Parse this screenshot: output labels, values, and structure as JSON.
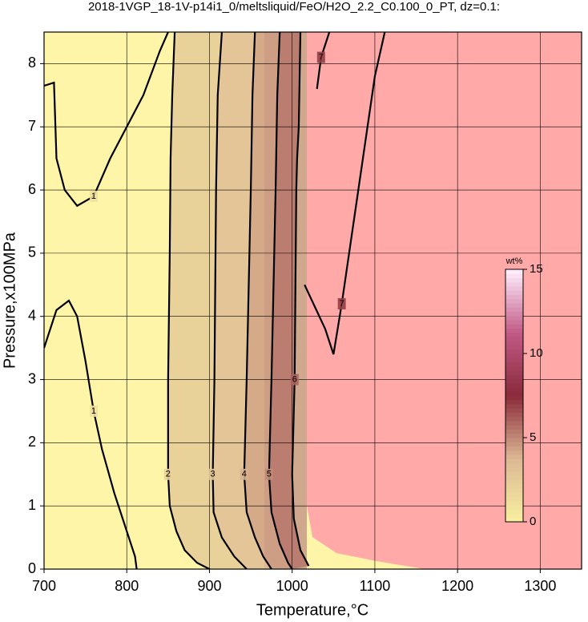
{
  "chart_data": {
    "type": "contour",
    "title": "2018-1VGP_18-1V-p14i1_0/meltsliquid/FeO/H2O_2.2_C0.100_0_PT, dz=0.1:",
    "x_label": "Temperature,°C",
    "y_label": "Pressure,x100MPa",
    "xlim": [
      700,
      1350
    ],
    "ylim": [
      0,
      8.5
    ],
    "xticks": [
      700,
      800,
      900,
      1000,
      1100,
      1200,
      1300
    ],
    "yticks": [
      0,
      1,
      2,
      3,
      4,
      5,
      6,
      7,
      8
    ],
    "grid": true,
    "contours": [
      {
        "level": 1,
        "pieces": [
          {
            "x": [
              700,
              712,
              715,
              725,
              740,
              760,
              780,
              800,
              820,
              840,
              850
            ],
            "y": [
              7.65,
              7.7,
              6.5,
              6.0,
              5.75,
              5.9,
              6.5,
              7.0,
              7.5,
              8.2,
              8.5
            ]
          },
          {
            "x": [
              700,
              715,
              730,
              740,
              750,
              760,
              770,
              785,
              800,
              810,
              812
            ],
            "y": [
              3.5,
              4.1,
              4.25,
              4.0,
              3.3,
              2.5,
              1.9,
              1.2,
              0.6,
              0.2,
              0
            ]
          }
        ]
      },
      {
        "level": 2,
        "pieces": [
          {
            "x": [
              858,
              855,
              853,
              852,
              850,
              850,
              852,
              860,
              870,
              885,
              900
            ],
            "y": [
              8.5,
              7.5,
              6.5,
              5.0,
              3.0,
              1.5,
              1.0,
              0.6,
              0.3,
              0.1,
              0
            ]
          }
        ]
      },
      {
        "level": 3,
        "pieces": [
          {
            "x": [
              915,
              910,
              908,
              906,
              904,
              905,
              915,
              930,
              945
            ],
            "y": [
              8.5,
              7.5,
              6.0,
              3.0,
              1.5,
              0.9,
              0.5,
              0.2,
              0
            ]
          }
        ]
      },
      {
        "level": 4,
        "pieces": [
          {
            "x": [
              955,
              952,
              950,
              945,
              942,
              945,
              955,
              965,
              975
            ],
            "y": [
              8.5,
              7.5,
              6.0,
              3.0,
              1.5,
              0.9,
              0.5,
              0.2,
              0
            ]
          }
        ]
      },
      {
        "level": 5,
        "pieces": [
          {
            "x": [
              985,
              982,
              980,
              975,
              972,
              975,
              985,
              995,
              1000
            ],
            "y": [
              8.5,
              7.5,
              6.0,
              3.0,
              1.5,
              0.9,
              0.4,
              0.1,
              0
            ]
          }
        ]
      },
      {
        "level": 6,
        "pieces": [
          {
            "x": [
              1010,
              1008,
              1006,
              1005,
              1003,
              1000,
              1002,
              1010,
              1020
            ],
            "y": [
              8.5,
              7.0,
              6.5,
              6.0,
              3.0,
              1.5,
              0.8,
              0.3,
              0.05
            ]
          }
        ]
      },
      {
        "level": 7,
        "pieces": [
          {
            "x": [
              1045,
              1035,
              1030
            ],
            "y": [
              8.5,
              8.1,
              7.6
            ]
          },
          {
            "x": [
              1015,
              1040,
              1050,
              1060,
              1080,
              1100,
              1112
            ],
            "y": [
              4.5,
              3.8,
              3.4,
              4.2,
              6.0,
              7.8,
              8.5
            ]
          }
        ]
      }
    ],
    "colorbar": {
      "label": "wt%",
      "lim": [
        0,
        15
      ],
      "ticks": [
        0,
        5,
        10,
        15
      ],
      "colors": [
        "#f8f0a0",
        "#dcb894",
        "#8a2a3a",
        "#c25a86",
        "#fff0ff"
      ]
    }
  }
}
